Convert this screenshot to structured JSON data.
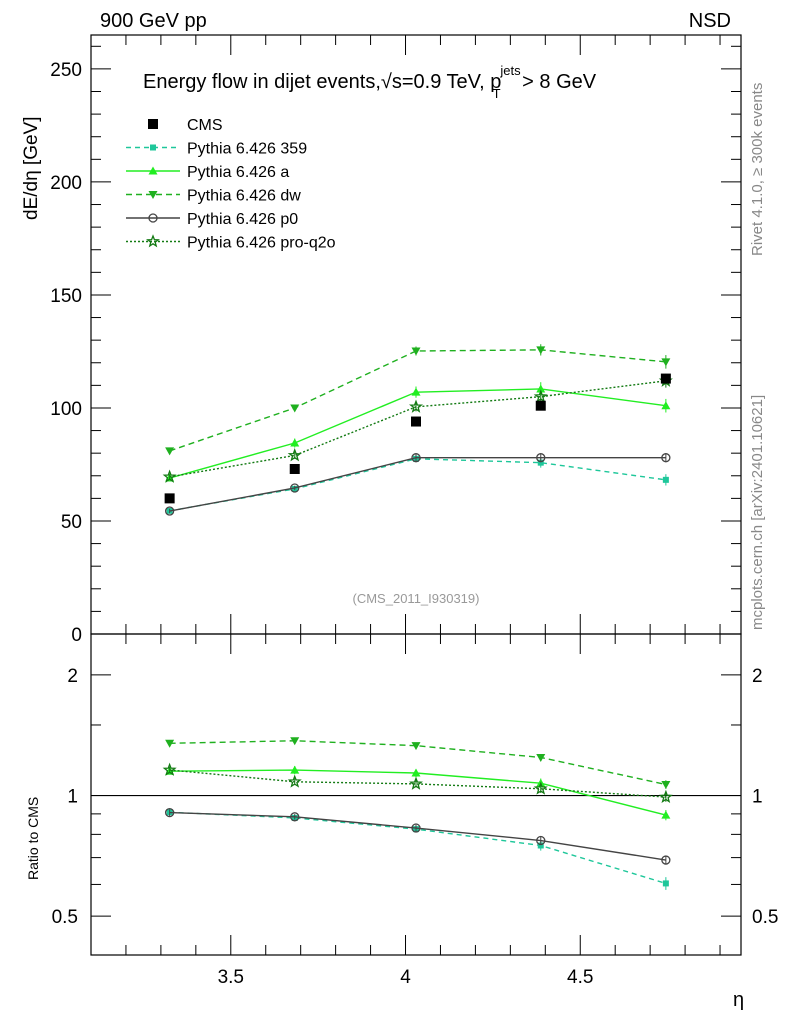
{
  "header": {
    "left": "900 GeV pp",
    "right": "NSD"
  },
  "side_text": {
    "rivet": "Rivet 4.1.0, ≥ 300k events",
    "mcplots": "mcplots.cern.ch [arXiv:2401.10621]"
  },
  "watermark": "(CMS_2011_I930319)",
  "chart_data": {
    "type": "line",
    "title": "Energy flow in dijet events,√s=0.9 TeV, p",
    "title_sup": "jets",
    "title_sub": "T",
    "title_tail": " > 8 GeV",
    "xlabel": "η",
    "ylabel": "dE/dη [GeV]",
    "ratio_ylabel": "Ratio to CMS",
    "xlim": [
      3.1,
      4.96
    ],
    "ylim": [
      0,
      265
    ],
    "ratio_ylim": [
      0.4,
      2.53
    ],
    "ratio_scale": "log",
    "x_ticks": [
      "3.5",
      "4",
      "4.5"
    ],
    "y_ticks": [
      "0",
      "50",
      "100",
      "150",
      "200",
      "250"
    ],
    "ratio_ticks": [
      "0.5",
      "1",
      "2"
    ],
    "legend_position": "top-left",
    "x": [
      3.325,
      3.683,
      4.03,
      4.387,
      4.745
    ],
    "reference": {
      "name": "CMS",
      "values": [
        60,
        73,
        94,
        101,
        113
      ],
      "color": "#000000",
      "marker": "square"
    },
    "series": [
      {
        "name": "Pythia 6.426 359",
        "values": [
          54.5,
          64.2,
          77.5,
          75.8,
          68.2
        ],
        "err": [
          1.2,
          1.2,
          1.5,
          2.2,
          2.5
        ],
        "color": "#1ec79a",
        "dash": "5,4",
        "marker": "square-small"
      },
      {
        "name": "Pythia 6.426 a",
        "values": [
          69,
          84.5,
          107,
          108.4,
          101
        ],
        "err": [
          1.2,
          2,
          2.5,
          3,
          3
        ],
        "color": "#22ee22",
        "dash": "",
        "marker": "triangle-up"
      },
      {
        "name": "Pythia 6.426 dw",
        "values": [
          81,
          100,
          125.2,
          125.7,
          120.4
        ],
        "err": [
          1.2,
          1.2,
          2,
          2.5,
          3
        ],
        "color": "#1fb01f",
        "dash": "6,4",
        "marker": "triangle-down"
      },
      {
        "name": "Pythia 6.426 p0",
        "values": [
          54.4,
          64.6,
          78,
          78,
          78
        ],
        "err": [
          1,
          1,
          1.5,
          1.8,
          2
        ],
        "color": "#444444",
        "dash": "",
        "marker": "circle-open"
      },
      {
        "name": "Pythia 6.426 pro-q2o",
        "values": [
          69.5,
          79,
          100.5,
          105,
          112
        ],
        "err": [
          1.2,
          1.5,
          2,
          2.5,
          3
        ],
        "color": "#137a13",
        "dash": "2,2",
        "marker": "star"
      }
    ]
  }
}
